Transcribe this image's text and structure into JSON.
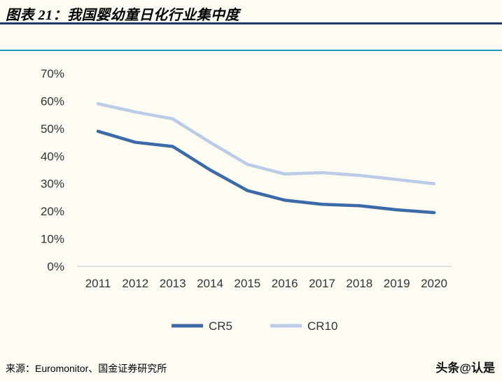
{
  "header": {
    "title": "图表 21：我国婴幼童日化行业集中度"
  },
  "footer": {
    "source": "来源：Euromonitor、国金证券研究所",
    "watermark": "头条@认是"
  },
  "colors": {
    "title_underline": "#1F3864",
    "accent_line": "#2499C6",
    "background": "#FCFCF3",
    "axis_text": "#333333",
    "baseline": "#D6D6D6"
  },
  "chart_data": {
    "type": "line",
    "title": "我国婴幼童日化行业集中度",
    "categories": [
      "2011",
      "2012",
      "2013",
      "2014",
      "2015",
      "2016",
      "2017",
      "2018",
      "2019",
      "2020"
    ],
    "series": [
      {
        "name": "CR5",
        "color": "#3C69A8",
        "values": [
          49,
          45,
          43.5,
          35,
          27.5,
          24,
          22.5,
          22,
          20.5,
          19.5
        ]
      },
      {
        "name": "CR10",
        "color": "#BCCBE6",
        "values": [
          59,
          56,
          53.5,
          45,
          37,
          33.5,
          34,
          33,
          31.5,
          30
        ]
      }
    ],
    "xlabel": "",
    "ylabel": "",
    "ylim": [
      0,
      70
    ],
    "ytick_step": 10,
    "ytick_format": "percent",
    "grid": false,
    "legend_position": "bottom"
  }
}
